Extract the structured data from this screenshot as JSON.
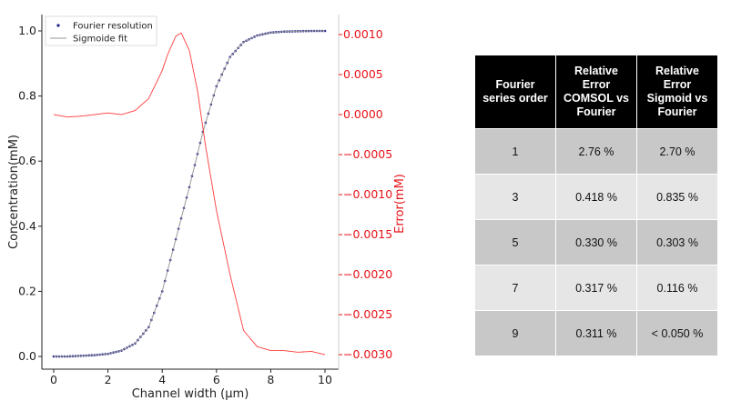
{
  "chart_data": {
    "type": "line",
    "xlabel": "Channel width (µm)",
    "ylabel": "Concentration(mM)",
    "y2label": "Error(mM)",
    "xlim": [
      0,
      10
    ],
    "ylim": [
      0,
      1.0
    ],
    "y2lim": [
      -0.003,
      0.001
    ],
    "x_ticks": [
      "0",
      "2",
      "4",
      "6",
      "8",
      "10"
    ],
    "y_ticks": [
      "0.0",
      "0.2",
      "0.4",
      "0.6",
      "0.8",
      "1.0"
    ],
    "y2_ticks": [
      "0.0010",
      "0.0005",
      "0.0000",
      "−0.0005",
      "−0.0010",
      "−0.0015",
      "−0.0020",
      "−0.0025",
      "−0.0030"
    ],
    "legend_position": "top-left",
    "series": [
      {
        "name": "Fourier resolution",
        "axis": "left",
        "color": "#1f1f8f",
        "style": "dots",
        "x": [
          0,
          0.5,
          1,
          1.5,
          2,
          2.5,
          3,
          3.5,
          4,
          4.5,
          5,
          5.5,
          6,
          6.5,
          7,
          7.5,
          8,
          8.5,
          9,
          9.5,
          10
        ],
        "y": [
          0.0,
          0.0,
          0.002,
          0.004,
          0.008,
          0.018,
          0.04,
          0.09,
          0.2,
          0.36,
          0.52,
          0.69,
          0.83,
          0.92,
          0.966,
          0.986,
          0.995,
          0.998,
          0.999,
          1.0,
          1.0
        ]
      },
      {
        "name": "Sigmoide fit",
        "axis": "left",
        "color": "#999999",
        "style": "line",
        "x": [
          0,
          0.5,
          1,
          1.5,
          2,
          2.5,
          3,
          3.5,
          4,
          4.5,
          5,
          5.5,
          6,
          6.5,
          7,
          7.5,
          8,
          8.5,
          9,
          9.5,
          10
        ],
        "y": [
          0.0,
          0.0,
          0.002,
          0.004,
          0.008,
          0.018,
          0.04,
          0.09,
          0.2,
          0.36,
          0.52,
          0.69,
          0.83,
          0.92,
          0.966,
          0.986,
          0.995,
          0.998,
          0.999,
          1.0,
          1.0
        ]
      },
      {
        "name": "Error",
        "axis": "right",
        "color": "#ff3b3b",
        "style": "line",
        "x": [
          0,
          0.5,
          1,
          1.5,
          2,
          2.5,
          3,
          3.5,
          4,
          4.2,
          4.5,
          4.7,
          5,
          5.3,
          5.6,
          6,
          6.5,
          7,
          7.5,
          8,
          8.5,
          9,
          9.5,
          10
        ],
        "y": [
          0.0,
          -3e-05,
          -2e-05,
          0.0,
          2e-05,
          0.0,
          5e-05,
          0.0002,
          0.00055,
          0.00075,
          0.00098,
          0.00102,
          0.0008,
          0.0003,
          -0.0004,
          -0.0012,
          -0.002,
          -0.0027,
          -0.0029,
          -0.00295,
          -0.00295,
          -0.00297,
          -0.00296,
          -0.003
        ]
      }
    ]
  },
  "table": {
    "headers": [
      "Fourier series order",
      "Relative Error COMSOL vs Fourier",
      "Relative Error Sigmoid vs Fourier"
    ],
    "header_lines": [
      [
        "Fourier",
        "series order"
      ],
      [
        "Relative",
        "Error",
        "COMSOL vs",
        "Fourier"
      ],
      [
        "Relative",
        "Error",
        "Sigmoid vs",
        "Fourier"
      ]
    ],
    "rows": [
      [
        "1",
        "2.76 %",
        "2.70 %"
      ],
      [
        "3",
        "0.418 %",
        "0.835 %"
      ],
      [
        "5",
        "0.330 %",
        "0.303 %"
      ],
      [
        "7",
        "0.317 %",
        "0.116 %"
      ],
      [
        "9",
        "0.311 %",
        "< 0.050 %"
      ]
    ]
  }
}
